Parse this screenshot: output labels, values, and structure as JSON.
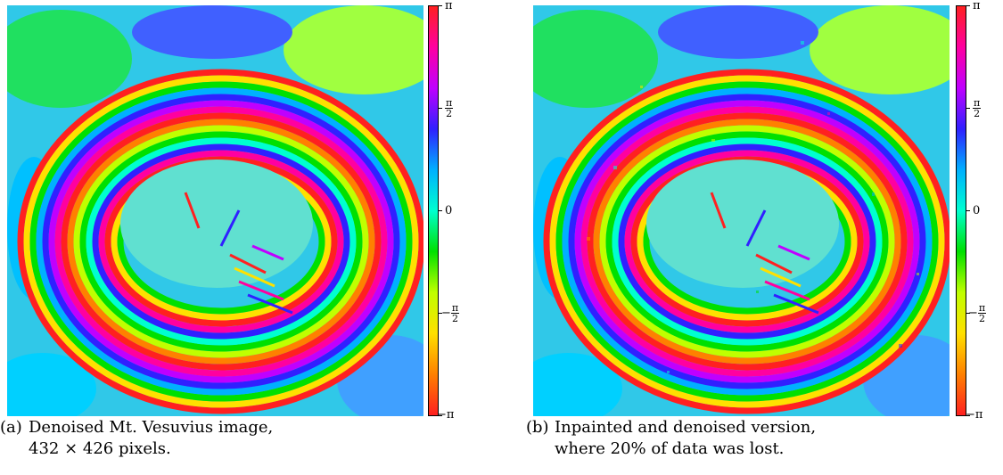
{
  "panels": [
    {
      "id": "a",
      "tag": "(a)",
      "caption_line1": "Denoised Mt. Vesuvius image,",
      "caption_line2": "432 × 426 pixels."
    },
    {
      "id": "b",
      "tag": "(b)",
      "caption_line1": "Inpainted and denoised version,",
      "caption_line2": "where 20% of data was lost."
    }
  ],
  "colorbar": {
    "ticks": {
      "top": "π",
      "half_num": "π",
      "half_den": "2",
      "zero": "0",
      "neg_half_sign": "−",
      "neg_half_num": "π",
      "neg_half_den": "2",
      "bottom": "−π"
    },
    "colors": [
      "#ff2020",
      "#ff00a0",
      "#c000ff",
      "#3020ff",
      "#00b0ff",
      "#00ffd0",
      "#00e000",
      "#c0ff00",
      "#ffe000",
      "#ff8000",
      "#ff2020"
    ]
  },
  "image_description_icon": "interferogram-phase-image"
}
